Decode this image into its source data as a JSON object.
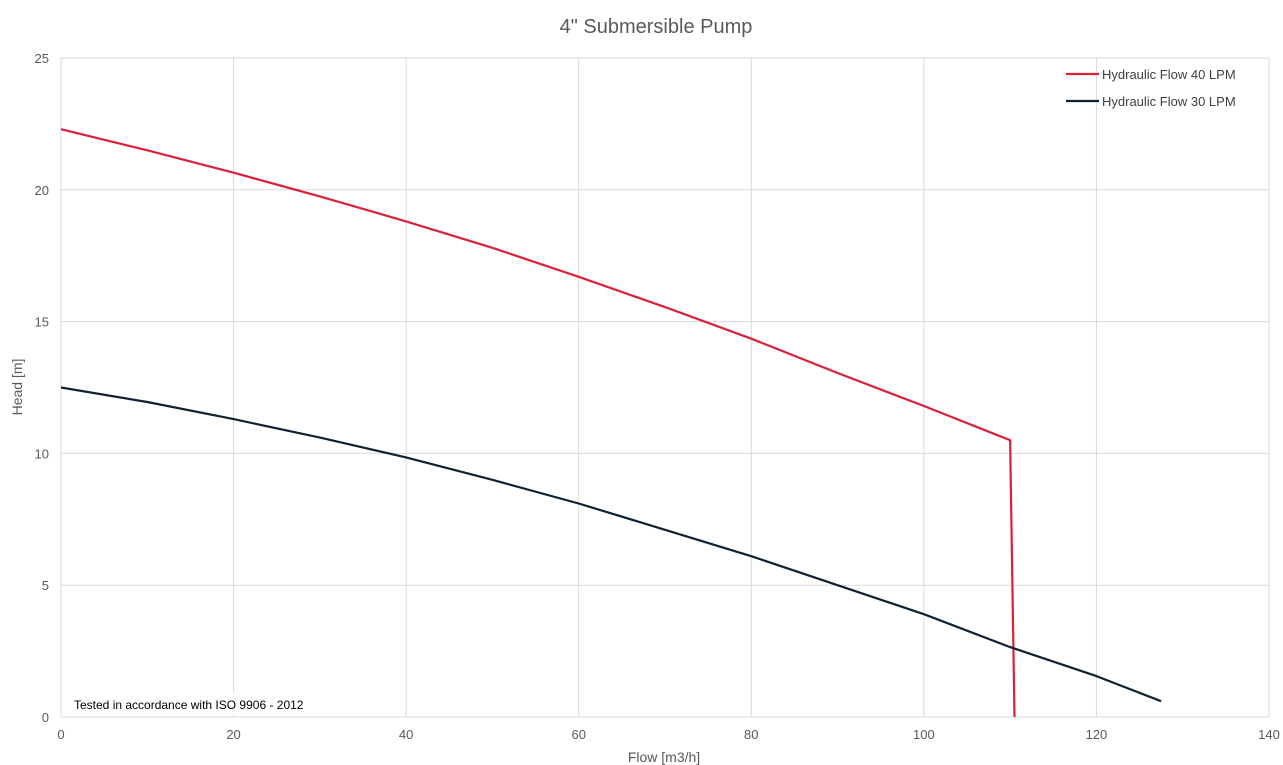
{
  "chart_data": {
    "type": "line",
    "title": "4\" Submersible Pump",
    "xlabel": "Flow [m3/h]",
    "ylabel": "Head [m]",
    "xlim": [
      0,
      140
    ],
    "ylim": [
      0,
      25
    ],
    "xticks": [
      0,
      20,
      40,
      60,
      80,
      100,
      120,
      140
    ],
    "yticks": [
      0,
      5,
      10,
      15,
      20,
      25
    ],
    "grid": true,
    "legend_position": "top-right",
    "annotation": "Tested in accordance with ISO 9906 - 2012",
    "series": [
      {
        "name": "Hydraulic Flow 40 LPM",
        "color": "#d9213a",
        "x": [
          0,
          10,
          20,
          30,
          40,
          50,
          60,
          70,
          80,
          90,
          100,
          110,
          110.5
        ],
        "y": [
          22.3,
          21.5,
          20.65,
          19.75,
          18.8,
          17.8,
          16.7,
          15.55,
          14.35,
          13.05,
          11.8,
          10.5,
          0
        ]
      },
      {
        "name": "Hydraulic Flow 30 LPM",
        "color": "#0e2233",
        "x": [
          0,
          10,
          20,
          30,
          40,
          50,
          60,
          70,
          80,
          90,
          100,
          110,
          120,
          127.5
        ],
        "y": [
          12.5,
          11.95,
          11.3,
          10.6,
          9.85,
          9.0,
          8.1,
          7.1,
          6.1,
          5.0,
          3.9,
          2.65,
          1.55,
          0.6
        ]
      }
    ]
  }
}
